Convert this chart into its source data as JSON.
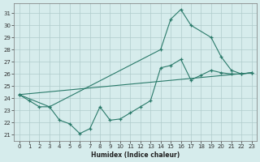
{
  "xlabel": "Humidex (Indice chaleur)",
  "xlim": [
    -0.5,
    23.5
  ],
  "ylim": [
    20.5,
    31.8
  ],
  "yticks": [
    21,
    22,
    23,
    24,
    25,
    26,
    27,
    28,
    29,
    30,
    31
  ],
  "xticks": [
    0,
    1,
    2,
    3,
    4,
    5,
    6,
    7,
    8,
    9,
    10,
    11,
    12,
    13,
    14,
    15,
    16,
    17,
    18,
    19,
    20,
    21,
    22,
    23
  ],
  "bg_color": "#d6ecec",
  "grid_color": "#b0cccc",
  "line_color": "#2a7a6a",
  "line_straight": {
    "x": [
      0,
      23
    ],
    "y": [
      24.3,
      26.1
    ]
  },
  "line_zigzag": {
    "x": [
      0,
      1,
      2,
      3,
      4,
      5,
      6,
      7,
      8,
      9,
      10,
      11,
      12,
      13,
      14,
      15,
      16,
      17,
      18,
      19,
      20,
      21,
      22,
      23
    ],
    "y": [
      24.3,
      23.8,
      23.3,
      23.3,
      22.2,
      21.9,
      21.1,
      21.5,
      23.3,
      22.2,
      22.3,
      22.8,
      23.3,
      23.8,
      26.5,
      26.7,
      27.2,
      25.5,
      25.9,
      26.3,
      26.1,
      26.0,
      26.0,
      26.1
    ]
  },
  "line_peak": {
    "x": [
      0,
      3,
      14,
      15,
      16,
      17,
      19,
      20,
      21,
      22,
      23
    ],
    "y": [
      24.3,
      23.3,
      28.0,
      30.5,
      31.3,
      30.0,
      29.0,
      27.4,
      26.3,
      26.0,
      26.1
    ]
  }
}
